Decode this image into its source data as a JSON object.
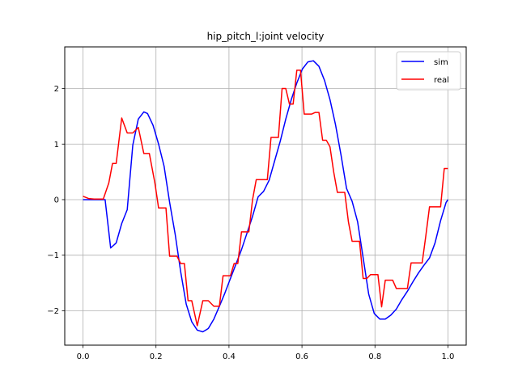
{
  "chart_data": {
    "type": "line",
    "title": "hip_pitch_l:joint velocity",
    "xlabel": "",
    "ylabel": "",
    "xlim": [
      -0.05,
      1.05
    ],
    "ylim": [
      -2.62,
      2.75
    ],
    "xticks": [
      0.0,
      0.2,
      0.4,
      0.6,
      0.8,
      1.0
    ],
    "xtick_labels": [
      "0.0",
      "0.2",
      "0.4",
      "0.6",
      "0.8",
      "1.0"
    ],
    "yticks": [
      -2,
      -1,
      0,
      1,
      2
    ],
    "ytick_labels": [
      "−2",
      "−1",
      "0",
      "1",
      "2"
    ],
    "grid": true,
    "legend": "top-right",
    "series": [
      {
        "name": "sim",
        "color": "#0000ff",
        "x": [
          0.0,
          0.0101,
          0.0202,
          0.0303,
          0.0404,
          0.0505,
          0.0606,
          0.0758,
          0.0909,
          0.1061,
          0.1212,
          0.1364,
          0.1515,
          0.1667,
          0.1768,
          0.1919,
          0.2071,
          0.2222,
          0.2374,
          0.2525,
          0.2677,
          0.2828,
          0.298,
          0.3131,
          0.3283,
          0.3434,
          0.3586,
          0.3737,
          0.3889,
          0.404,
          0.4192,
          0.4343,
          0.4495,
          0.4646,
          0.4798,
          0.4949,
          0.5101,
          0.5252,
          0.5404,
          0.5556,
          0.5707,
          0.5859,
          0.601,
          0.6162,
          0.6313,
          0.6465,
          0.6616,
          0.6768,
          0.6919,
          0.7071,
          0.7222,
          0.7374,
          0.7525,
          0.7677,
          0.7828,
          0.798,
          0.8131,
          0.8283,
          0.8434,
          0.8586,
          0.8737,
          0.8889,
          0.904,
          0.9192,
          0.9343,
          0.9495,
          0.9646,
          0.9798,
          0.9949,
          1.0
        ],
        "y": [
          0.0,
          0.0,
          0.0,
          0.0,
          0.0,
          0.0,
          0.0,
          -0.87,
          -0.78,
          -0.43,
          -0.18,
          0.98,
          1.45,
          1.58,
          1.55,
          1.34,
          1.0,
          0.6,
          -0.05,
          -0.62,
          -1.3,
          -1.88,
          -2.2,
          -2.35,
          -2.38,
          -2.32,
          -2.15,
          -1.92,
          -1.68,
          -1.42,
          -1.16,
          -0.9,
          -0.6,
          -0.3,
          0.05,
          0.15,
          0.35,
          0.7,
          1.05,
          1.45,
          1.8,
          2.1,
          2.35,
          2.48,
          2.5,
          2.4,
          2.15,
          1.8,
          1.35,
          0.8,
          0.2,
          -0.03,
          -0.4,
          -1.05,
          -1.7,
          -2.05,
          -2.15,
          -2.15,
          -2.08,
          -1.97,
          -1.8,
          -1.65,
          -1.48,
          -1.32,
          -1.18,
          -1.05,
          -0.78,
          -0.38,
          -0.05,
          0.0
        ]
      },
      {
        "name": "real",
        "color": "#ff0000",
        "x": [
          0.0,
          0.0152,
          0.0303,
          0.0455,
          0.0556,
          0.0707,
          0.0808,
          0.0909,
          0.1061,
          0.1212,
          0.1364,
          0.1515,
          0.1667,
          0.1818,
          0.197,
          0.2071,
          0.2172,
          0.2273,
          0.2374,
          0.2475,
          0.2576,
          0.2677,
          0.2778,
          0.2879,
          0.298,
          0.3131,
          0.3283,
          0.3434,
          0.3586,
          0.3737,
          0.3838,
          0.3939,
          0.404,
          0.4141,
          0.4242,
          0.4343,
          0.4444,
          0.4545,
          0.4646,
          0.4747,
          0.4848,
          0.4949,
          0.5051,
          0.5152,
          0.5253,
          0.5354,
          0.5455,
          0.5556,
          0.5657,
          0.5758,
          0.5859,
          0.596,
          0.6061,
          0.6162,
          0.6263,
          0.6364,
          0.6465,
          0.6566,
          0.6667,
          0.6768,
          0.6869,
          0.697,
          0.7071,
          0.7172,
          0.7273,
          0.7374,
          0.7475,
          0.7576,
          0.7677,
          0.7778,
          0.7879,
          0.798,
          0.8081,
          0.8182,
          0.8283,
          0.8384,
          0.8485,
          0.8586,
          0.8687,
          0.8788,
          0.8889,
          0.899,
          0.9091,
          0.9192,
          0.9293,
          0.9394,
          0.9495,
          0.9596,
          0.9697,
          0.9798,
          0.9899,
          1.0
        ],
        "y": [
          0.06,
          0.02,
          0.01,
          0.01,
          0.01,
          0.3,
          0.65,
          0.65,
          1.47,
          1.2,
          1.2,
          1.3,
          0.83,
          0.83,
          0.3,
          -0.15,
          -0.15,
          -0.15,
          -1.02,
          -1.02,
          -1.02,
          -1.15,
          -1.15,
          -1.82,
          -1.82,
          -2.27,
          -1.82,
          -1.82,
          -1.92,
          -1.92,
          -1.37,
          -1.37,
          -1.37,
          -1.15,
          -1.15,
          -0.58,
          -0.58,
          -0.58,
          0.0,
          0.36,
          0.36,
          0.36,
          0.36,
          1.12,
          1.12,
          1.12,
          2.0,
          2.0,
          1.72,
          1.72,
          2.33,
          2.33,
          1.54,
          1.54,
          1.54,
          1.57,
          1.57,
          1.07,
          1.07,
          0.95,
          0.5,
          0.13,
          0.13,
          0.13,
          -0.4,
          -0.75,
          -0.75,
          -0.75,
          -1.42,
          -1.42,
          -1.35,
          -1.35,
          -1.35,
          -1.93,
          -1.45,
          -1.45,
          -1.45,
          -1.6,
          -1.6,
          -1.6,
          -1.6,
          -1.14,
          -1.14,
          -1.14,
          -1.14,
          -0.65,
          -0.13,
          -0.13,
          -0.13,
          -0.13,
          0.56,
          0.56
        ]
      }
    ]
  }
}
